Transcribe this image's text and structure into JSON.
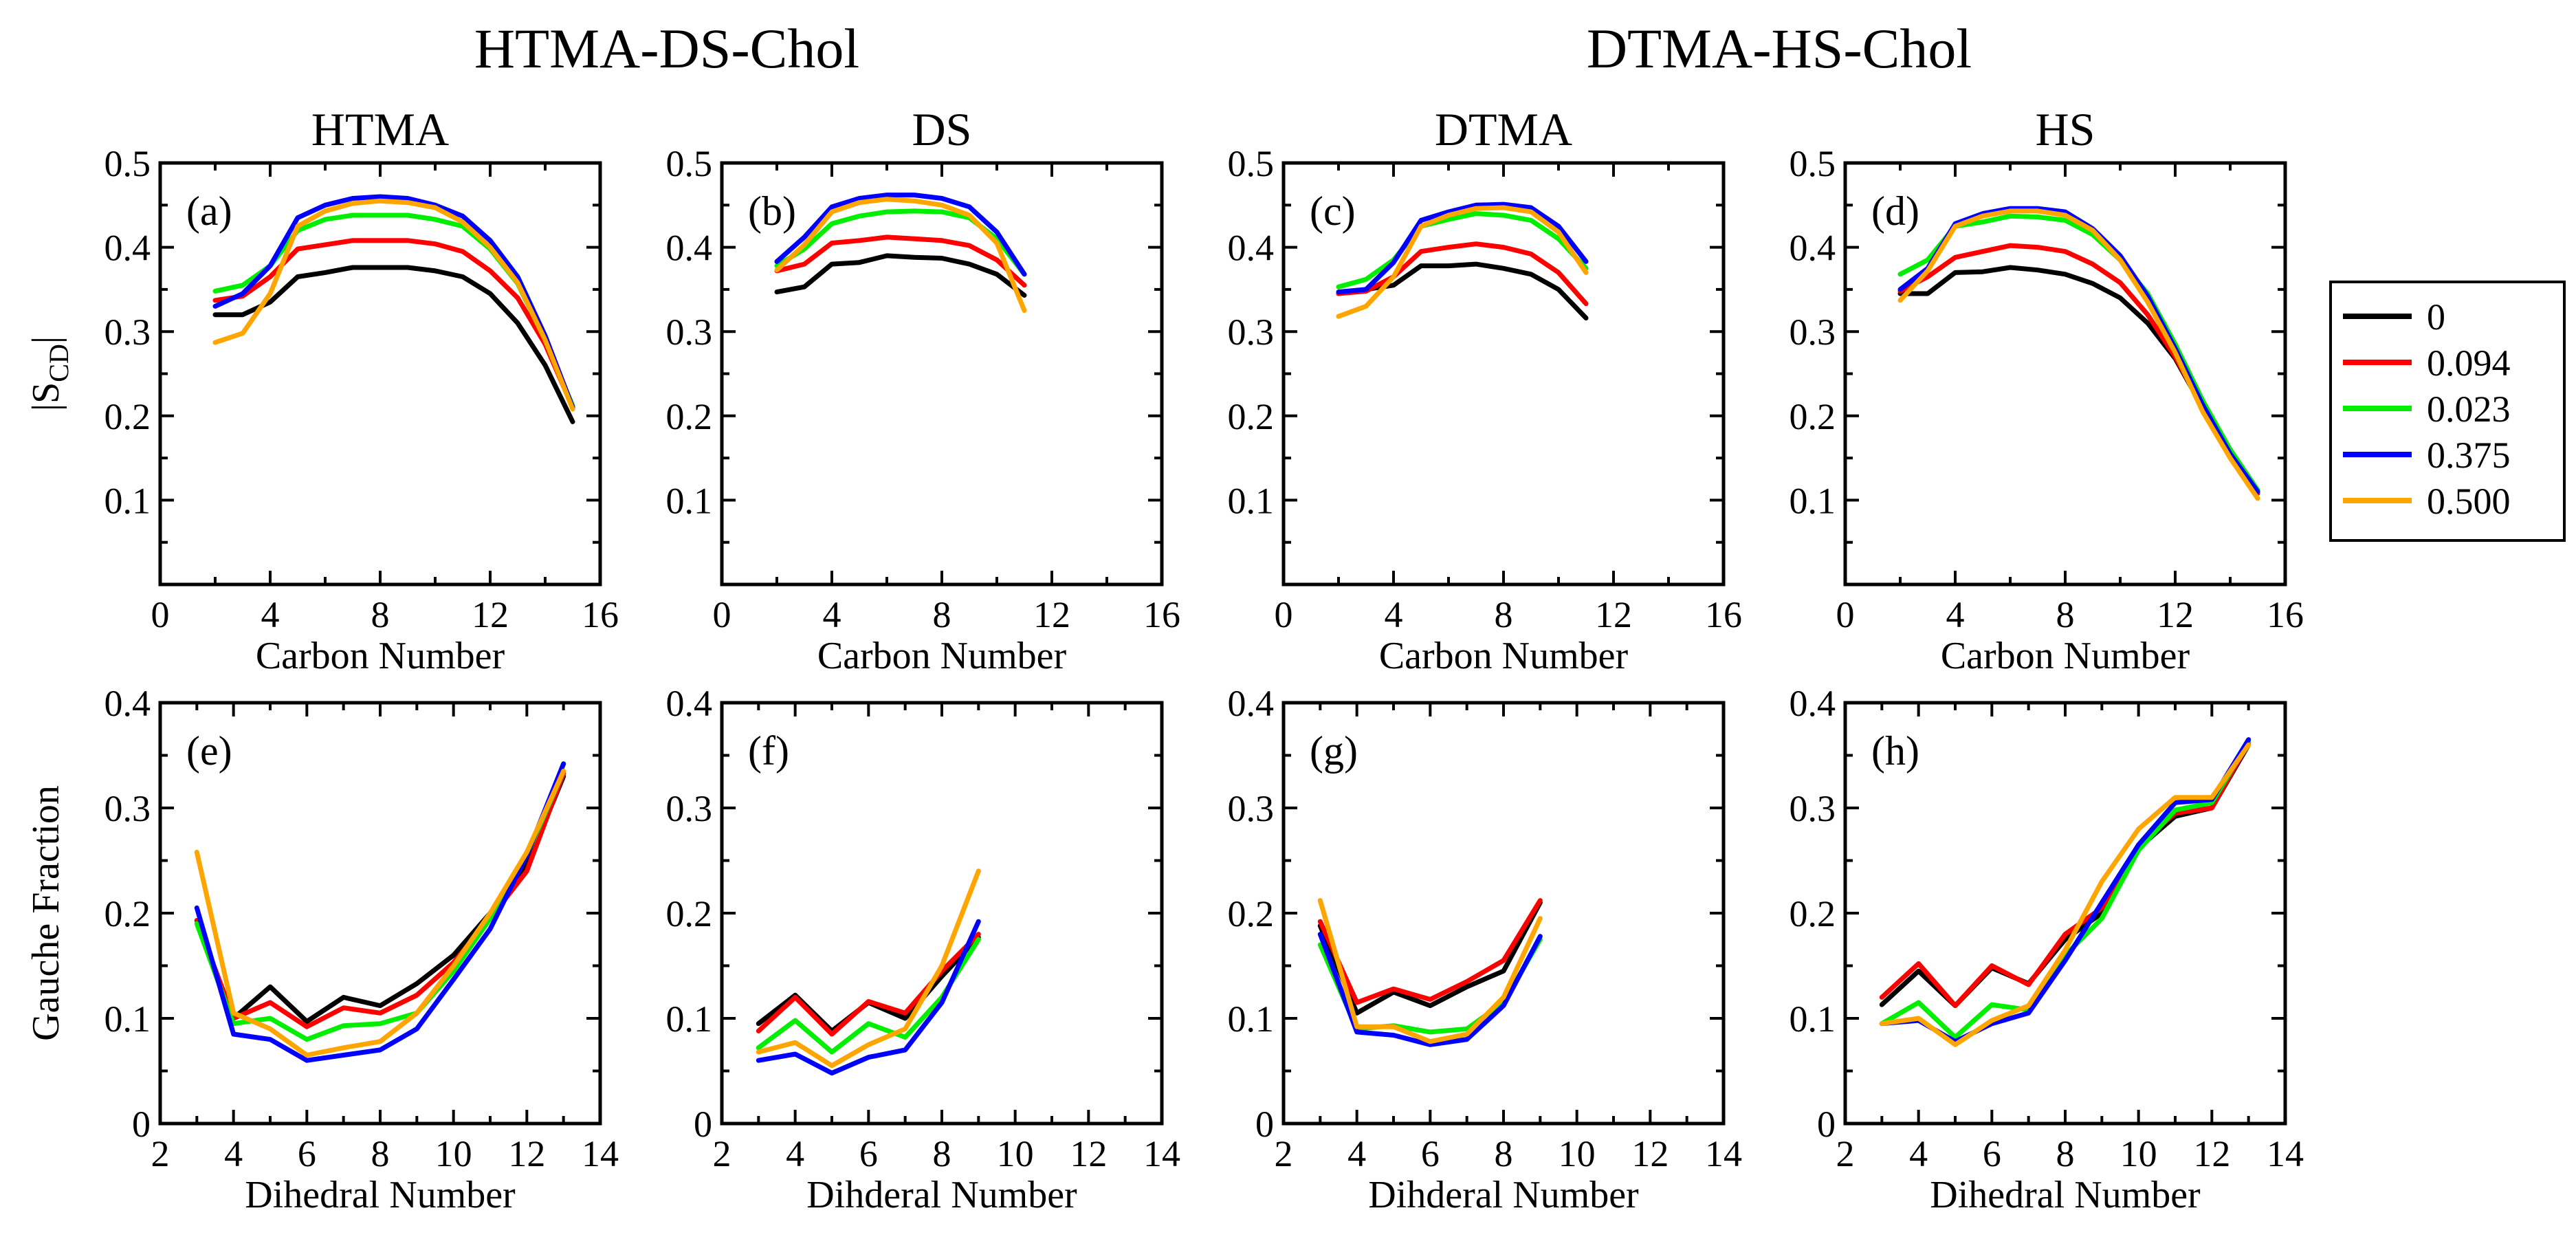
{
  "figure": {
    "group_titles": [
      "HTMA-DS-Chol",
      "DTMA-HS-Chol"
    ],
    "legend": {
      "entries": [
        {
          "label": "0",
          "color": "#000000"
        },
        {
          "label": "0.094",
          "color": "#ff0000"
        },
        {
          "label": "0.023",
          "color": "#00ee00"
        },
        {
          "label": "0.375",
          "color": "#0000ff"
        },
        {
          "label": "0.500",
          "color": "#ffa500"
        }
      ]
    }
  },
  "chart_data": [
    {
      "type": "line",
      "panel": "(a)",
      "title": "HTMA",
      "xlabel": "Carbon Number",
      "ylabel": "|S_CD|",
      "ylabel_main": "|S",
      "ylabel_sub": "CD",
      "ylabel_end": "|",
      "xlim": [
        0,
        16
      ],
      "ylim": [
        0,
        0.5
      ],
      "xticks": [
        0,
        4,
        8,
        12,
        16
      ],
      "xtick_labels": [
        "0",
        "4",
        "8",
        "12",
        "16"
      ],
      "yticks": [
        0.1,
        0.2,
        0.3,
        0.4,
        0.5
      ],
      "ytick_labels": [
        "0.1",
        "0.2",
        "0.3",
        "0.4",
        "0.5"
      ],
      "x": [
        2,
        3,
        4,
        5,
        6,
        7,
        8,
        9,
        10,
        11,
        12,
        13,
        14,
        15
      ],
      "series": [
        {
          "name": "0",
          "values": [
            0.32,
            0.32,
            0.335,
            0.365,
            0.37,
            0.376,
            0.376,
            0.376,
            0.372,
            0.365,
            0.345,
            0.31,
            0.26,
            0.193
          ]
        },
        {
          "name": "0.094",
          "values": [
            0.337,
            0.342,
            0.365,
            0.398,
            0.403,
            0.408,
            0.408,
            0.408,
            0.404,
            0.395,
            0.372,
            0.34,
            0.285,
            0.21
          ]
        },
        {
          "name": "0.023",
          "values": [
            0.348,
            0.355,
            0.378,
            0.42,
            0.433,
            0.438,
            0.438,
            0.438,
            0.433,
            0.425,
            0.398,
            0.357,
            0.29,
            0.212
          ]
        },
        {
          "name": "0.375",
          "values": [
            0.33,
            0.345,
            0.378,
            0.435,
            0.45,
            0.458,
            0.46,
            0.458,
            0.45,
            0.437,
            0.408,
            0.365,
            0.295,
            0.21
          ]
        },
        {
          "name": "0.500",
          "values": [
            0.287,
            0.298,
            0.345,
            0.425,
            0.443,
            0.452,
            0.455,
            0.453,
            0.447,
            0.43,
            0.4,
            0.358,
            0.29,
            0.208
          ]
        }
      ]
    },
    {
      "type": "line",
      "panel": "(b)",
      "title": "DS",
      "xlabel": "Carbon Number",
      "ylabel": "",
      "xlim": [
        0,
        16
      ],
      "ylim": [
        0,
        0.5
      ],
      "xticks": [
        0,
        4,
        8,
        12,
        16
      ],
      "xtick_labels": [
        "0",
        "4",
        "8",
        "12",
        "16"
      ],
      "yticks": [
        0.1,
        0.2,
        0.3,
        0.4,
        0.5
      ],
      "ytick_labels": [
        "0.1",
        "0.2",
        "0.3",
        "0.4",
        "0.5"
      ],
      "x": [
        2,
        3,
        4,
        5,
        6,
        7,
        8,
        9,
        10,
        11
      ],
      "series": [
        {
          "name": "0",
          "values": [
            0.347,
            0.353,
            0.38,
            0.382,
            0.39,
            0.388,
            0.387,
            0.38,
            0.368,
            0.343
          ]
        },
        {
          "name": "0.094",
          "values": [
            0.372,
            0.38,
            0.405,
            0.408,
            0.412,
            0.41,
            0.408,
            0.402,
            0.385,
            0.355
          ]
        },
        {
          "name": "0.023",
          "values": [
            0.378,
            0.398,
            0.428,
            0.437,
            0.442,
            0.443,
            0.442,
            0.435,
            0.41,
            0.368
          ]
        },
        {
          "name": "0.375",
          "values": [
            0.383,
            0.412,
            0.448,
            0.458,
            0.462,
            0.462,
            0.458,
            0.448,
            0.418,
            0.368
          ]
        },
        {
          "name": "0.500",
          "values": [
            0.373,
            0.403,
            0.442,
            0.453,
            0.457,
            0.455,
            0.45,
            0.438,
            0.405,
            0.325
          ]
        }
      ]
    },
    {
      "type": "line",
      "panel": "(c)",
      "title": "DTMA",
      "xlabel": "Carbon Number",
      "ylabel": "",
      "xlim": [
        0,
        16
      ],
      "ylim": [
        0,
        0.5
      ],
      "xticks": [
        0,
        4,
        8,
        12,
        16
      ],
      "xtick_labels": [
        "0",
        "4",
        "8",
        "12",
        "16"
      ],
      "yticks": [
        0.1,
        0.2,
        0.3,
        0.4,
        0.5
      ],
      "ytick_labels": [
        "0.1",
        "0.2",
        "0.3",
        "0.4",
        "0.5"
      ],
      "x": [
        2,
        3,
        4,
        5,
        6,
        7,
        8,
        9,
        10,
        11
      ],
      "series": [
        {
          "name": "0",
          "values": [
            0.345,
            0.35,
            0.355,
            0.378,
            0.378,
            0.38,
            0.375,
            0.368,
            0.35,
            0.316
          ]
        },
        {
          "name": "0.094",
          "values": [
            0.345,
            0.348,
            0.365,
            0.395,
            0.4,
            0.404,
            0.4,
            0.392,
            0.37,
            0.333
          ]
        },
        {
          "name": "0.023",
          "values": [
            0.353,
            0.362,
            0.385,
            0.425,
            0.433,
            0.44,
            0.438,
            0.432,
            0.41,
            0.375
          ]
        },
        {
          "name": "0.375",
          "values": [
            0.347,
            0.35,
            0.382,
            0.432,
            0.442,
            0.45,
            0.451,
            0.447,
            0.425,
            0.383
          ]
        },
        {
          "name": "0.500",
          "values": [
            0.318,
            0.33,
            0.365,
            0.425,
            0.438,
            0.446,
            0.447,
            0.442,
            0.418,
            0.37
          ]
        }
      ]
    },
    {
      "type": "line",
      "panel": "(d)",
      "title": "HS",
      "xlabel": "Carbon Number",
      "ylabel": "",
      "xlim": [
        0,
        16
      ],
      "ylim": [
        0,
        0.5
      ],
      "xticks": [
        0,
        4,
        8,
        12,
        16
      ],
      "xtick_labels": [
        "0",
        "4",
        "8",
        "12",
        "16"
      ],
      "yticks": [
        0.1,
        0.2,
        0.3,
        0.4,
        0.5
      ],
      "ytick_labels": [
        "0.1",
        "0.2",
        "0.3",
        "0.4",
        "0.5"
      ],
      "x": [
        2,
        3,
        4,
        5,
        6,
        7,
        8,
        9,
        10,
        11,
        12,
        13,
        14,
        15
      ],
      "series": [
        {
          "name": "0",
          "values": [
            0.345,
            0.345,
            0.37,
            0.371,
            0.376,
            0.373,
            0.368,
            0.357,
            0.34,
            0.31,
            0.268,
            0.21,
            0.16,
            0.11
          ]
        },
        {
          "name": "0.094",
          "values": [
            0.348,
            0.365,
            0.388,
            0.395,
            0.402,
            0.4,
            0.395,
            0.38,
            0.358,
            0.32,
            0.27,
            0.21,
            0.158,
            0.108
          ]
        },
        {
          "name": "0.023",
          "values": [
            0.368,
            0.385,
            0.425,
            0.43,
            0.437,
            0.436,
            0.432,
            0.415,
            0.385,
            0.345,
            0.285,
            0.218,
            0.16,
            0.112
          ]
        },
        {
          "name": "0.375",
          "values": [
            0.35,
            0.375,
            0.428,
            0.44,
            0.446,
            0.446,
            0.442,
            0.422,
            0.39,
            0.342,
            0.28,
            0.213,
            0.155,
            0.11
          ]
        },
        {
          "name": "0.500",
          "values": [
            0.337,
            0.372,
            0.425,
            0.437,
            0.443,
            0.443,
            0.438,
            0.42,
            0.385,
            0.335,
            0.275,
            0.205,
            0.15,
            0.102
          ]
        }
      ]
    },
    {
      "type": "line",
      "panel": "(e)",
      "title": "",
      "xlabel": "Dihedral Number",
      "ylabel": "Gauche Fraction",
      "xlim": [
        2,
        14
      ],
      "ylim": [
        0,
        0.4
      ],
      "xticks": [
        2,
        4,
        6,
        8,
        10,
        12,
        14
      ],
      "xtick_labels": [
        "2",
        "4",
        "6",
        "8",
        "10",
        "12",
        "14"
      ],
      "yticks": [
        0,
        0.1,
        0.2,
        0.3,
        0.4
      ],
      "ytick_labels": [
        "0",
        "0.1",
        "0.2",
        "0.3",
        "0.4"
      ],
      "x": [
        3,
        4,
        5,
        6,
        7,
        8,
        9,
        10,
        11,
        12,
        13
      ],
      "series": [
        {
          "name": "0",
          "values": [
            0.193,
            0.1,
            0.13,
            0.097,
            0.12,
            0.112,
            0.133,
            0.16,
            0.2,
            0.245,
            0.33
          ]
        },
        {
          "name": "0.094",
          "values": [
            0.193,
            0.1,
            0.115,
            0.092,
            0.11,
            0.105,
            0.122,
            0.153,
            0.195,
            0.24,
            0.333
          ]
        },
        {
          "name": "0.023",
          "values": [
            0.19,
            0.095,
            0.1,
            0.08,
            0.093,
            0.095,
            0.105,
            0.145,
            0.195,
            0.255,
            0.335
          ]
        },
        {
          "name": "0.375",
          "values": [
            0.205,
            0.085,
            0.08,
            0.06,
            0.065,
            0.07,
            0.09,
            0.137,
            0.185,
            0.255,
            0.342
          ]
        },
        {
          "name": "0.500",
          "values": [
            0.258,
            0.105,
            0.09,
            0.065,
            0.072,
            0.078,
            0.105,
            0.15,
            0.2,
            0.258,
            0.335
          ]
        }
      ]
    },
    {
      "type": "line",
      "panel": "(f)",
      "title": "",
      "xlabel": "Dihderal Number",
      "ylabel": "",
      "xlim": [
        2,
        14
      ],
      "ylim": [
        0,
        0.4
      ],
      "xticks": [
        2,
        4,
        6,
        8,
        10,
        12,
        14
      ],
      "xtick_labels": [
        "2",
        "4",
        "6",
        "8",
        "10",
        "12",
        "14"
      ],
      "yticks": [
        0,
        0.1,
        0.2,
        0.3,
        0.4
      ],
      "ytick_labels": [
        "0",
        "0.1",
        "0.2",
        "0.3",
        "0.4"
      ],
      "x": [
        3,
        4,
        5,
        6,
        7,
        8,
        9
      ],
      "series": [
        {
          "name": "0",
          "values": [
            0.095,
            0.122,
            0.088,
            0.115,
            0.1,
            0.14,
            0.177
          ]
        },
        {
          "name": "0.094",
          "values": [
            0.088,
            0.12,
            0.085,
            0.116,
            0.105,
            0.145,
            0.18
          ]
        },
        {
          "name": "0.023",
          "values": [
            0.072,
            0.098,
            0.068,
            0.095,
            0.082,
            0.12,
            0.175
          ]
        },
        {
          "name": "0.375",
          "values": [
            0.06,
            0.066,
            0.048,
            0.063,
            0.07,
            0.115,
            0.192
          ]
        },
        {
          "name": "0.500",
          "values": [
            0.068,
            0.077,
            0.055,
            0.075,
            0.09,
            0.15,
            0.24
          ]
        }
      ]
    },
    {
      "type": "line",
      "panel": "(g)",
      "title": "",
      "xlabel": "Dihderal Number",
      "ylabel": "",
      "xlim": [
        2,
        14
      ],
      "ylim": [
        0,
        0.4
      ],
      "xticks": [
        2,
        4,
        6,
        8,
        10,
        12,
        14
      ],
      "xtick_labels": [
        "2",
        "4",
        "6",
        "8",
        "10",
        "12",
        "14"
      ],
      "yticks": [
        0,
        0.1,
        0.2,
        0.3,
        0.4
      ],
      "ytick_labels": [
        "0",
        "0.1",
        "0.2",
        "0.3",
        "0.4"
      ],
      "x": [
        3,
        4,
        5,
        6,
        7,
        8,
        9
      ],
      "series": [
        {
          "name": "0",
          "values": [
            0.188,
            0.105,
            0.125,
            0.112,
            0.13,
            0.145,
            0.21
          ]
        },
        {
          "name": "0.094",
          "values": [
            0.192,
            0.115,
            0.128,
            0.118,
            0.135,
            0.155,
            0.212
          ]
        },
        {
          "name": "0.023",
          "values": [
            0.17,
            0.09,
            0.093,
            0.087,
            0.09,
            0.115,
            0.175
          ]
        },
        {
          "name": "0.375",
          "values": [
            0.18,
            0.087,
            0.084,
            0.075,
            0.08,
            0.112,
            0.178
          ]
        },
        {
          "name": "0.500",
          "values": [
            0.212,
            0.092,
            0.092,
            0.078,
            0.085,
            0.12,
            0.195
          ]
        }
      ]
    },
    {
      "type": "line",
      "panel": "(h)",
      "title": "",
      "xlabel": "Dihedral  Number",
      "ylabel": "",
      "xlim": [
        2,
        14
      ],
      "ylim": [
        0,
        0.4
      ],
      "xticks": [
        2,
        4,
        6,
        8,
        10,
        12,
        14
      ],
      "xtick_labels": [
        "2",
        "4",
        "6",
        "8",
        "10",
        "12",
        "14"
      ],
      "yticks": [
        0,
        0.1,
        0.2,
        0.3,
        0.4
      ],
      "ytick_labels": [
        "0",
        "0.1",
        "0.2",
        "0.3",
        "0.4"
      ],
      "x": [
        3,
        4,
        5,
        6,
        7,
        8,
        9,
        10,
        11,
        12,
        13
      ],
      "series": [
        {
          "name": "0",
          "values": [
            0.113,
            0.145,
            0.112,
            0.148,
            0.133,
            0.175,
            0.2,
            0.262,
            0.292,
            0.3,
            0.36
          ]
        },
        {
          "name": "0.094",
          "values": [
            0.12,
            0.152,
            0.112,
            0.15,
            0.132,
            0.18,
            0.205,
            0.265,
            0.295,
            0.3,
            0.362
          ]
        },
        {
          "name": "0.023",
          "values": [
            0.095,
            0.115,
            0.082,
            0.113,
            0.108,
            0.16,
            0.195,
            0.26,
            0.298,
            0.305,
            0.363
          ]
        },
        {
          "name": "0.375",
          "values": [
            0.095,
            0.098,
            0.078,
            0.095,
            0.105,
            0.155,
            0.21,
            0.265,
            0.305,
            0.308,
            0.365
          ]
        },
        {
          "name": "0.500",
          "values": [
            0.095,
            0.1,
            0.075,
            0.098,
            0.112,
            0.165,
            0.23,
            0.28,
            0.31,
            0.31,
            0.36
          ]
        }
      ]
    }
  ]
}
